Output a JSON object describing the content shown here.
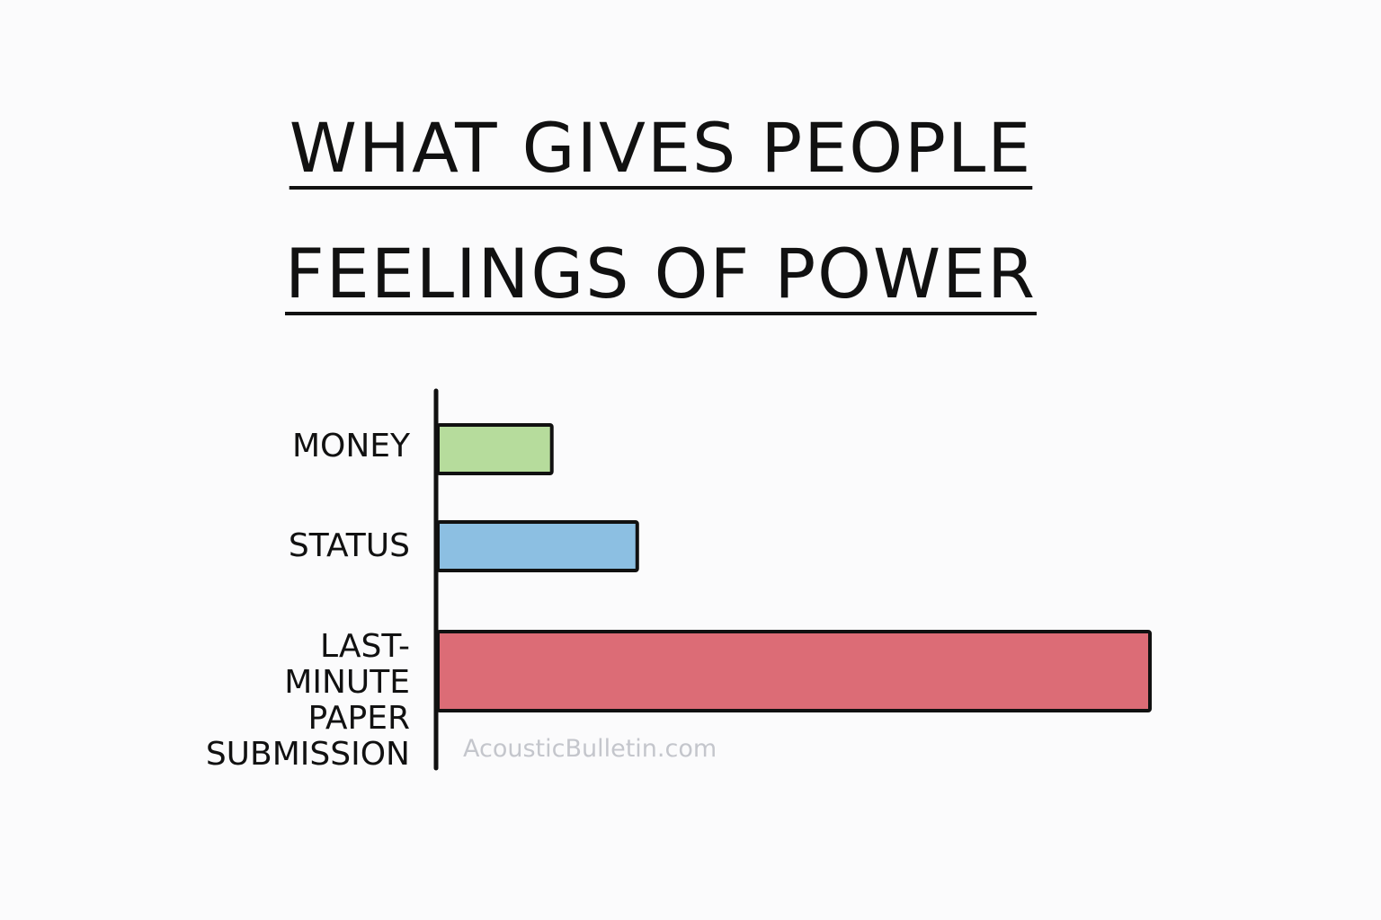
{
  "chart_data": {
    "type": "bar",
    "orientation": "horizontal",
    "title": "WHAT GIVES PEOPLE\nFEELINGS OF POWER",
    "categories": [
      "MONEY",
      "STATUS",
      "LAST-\nMINUTE\nPAPER\nSUBMISSION"
    ],
    "values": [
      16,
      28,
      100
    ],
    "colors": [
      "#b6dc9c",
      "#8cbfe2",
      "#dc6c76"
    ],
    "watermark": "AcousticBulletin.com"
  }
}
